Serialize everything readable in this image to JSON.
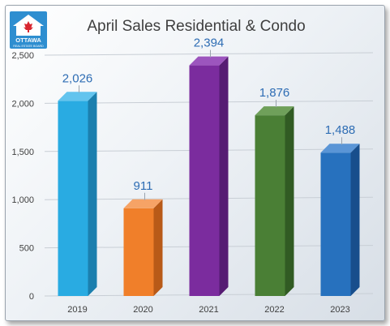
{
  "chart_data": {
    "type": "bar",
    "title": "April Sales Residential & Condo",
    "categories": [
      "2019",
      "2020",
      "2021",
      "2022",
      "2023"
    ],
    "values": [
      2026,
      911,
      2394,
      1876,
      1488
    ],
    "data_labels": [
      "2,026",
      "911",
      "2,394",
      "1,876",
      "1,488"
    ],
    "ylim": [
      0,
      2500
    ],
    "yticks": [
      0,
      500,
      1000,
      1500,
      2000,
      2500
    ],
    "ytick_labels": [
      "0",
      "500",
      "1,000",
      "1,500",
      "2,000",
      "2,500"
    ],
    "grid": true,
    "legend": "none",
    "xlabel": "",
    "ylabel": "",
    "bar_colors": [
      "#29ABE2",
      "#F07F2A",
      "#7B2C9E",
      "#4A7F35",
      "#2771BE"
    ],
    "bar_side_colors": [
      "#1B7FAE",
      "#B85A18",
      "#561C73",
      "#315B23",
      "#184E8C"
    ],
    "bar_top_colors": [
      "#63C4EE",
      "#F6A366",
      "#9C55BE",
      "#6FA05A",
      "#5A95D6"
    ],
    "label_color": "#2E6DB4"
  },
  "logo": {
    "text": "OTTAWA",
    "subtext": "REAL ESTATE BOARD",
    "color": "#2E8ED0"
  }
}
